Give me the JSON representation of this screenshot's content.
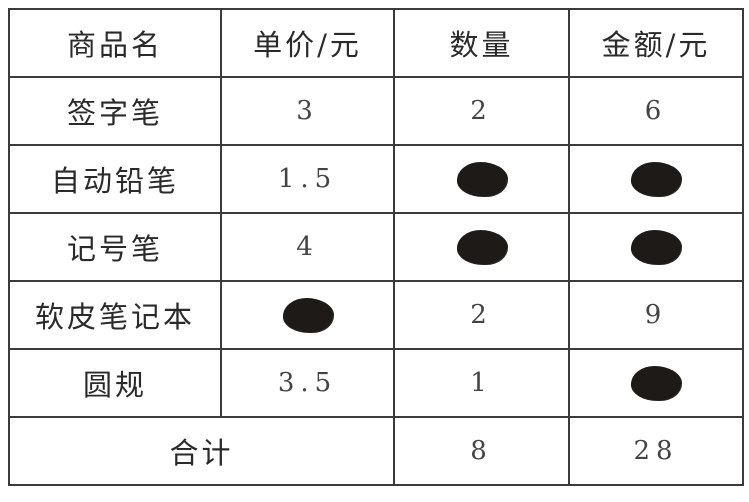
{
  "headers": [
    "商品名",
    "单价/元",
    "数量",
    "金额/元"
  ],
  "rows": [
    {
      "name": "签字笔",
      "price": "3",
      "qty": "2",
      "amount": "6"
    },
    {
      "name": "自动铅笔",
      "price": "1.5",
      "qty": null,
      "amount": null
    },
    {
      "name": "记号笔",
      "price": "4",
      "qty": null,
      "amount": null
    },
    {
      "name": "软皮笔记本",
      "price": null,
      "qty": "2",
      "amount": "9"
    },
    {
      "name": "圆规",
      "price": "3.5",
      "qty": "1",
      "amount": null
    }
  ],
  "total": {
    "label": "合计",
    "qty": "8",
    "amount": "28"
  },
  "blot_color": "#1e1a18"
}
